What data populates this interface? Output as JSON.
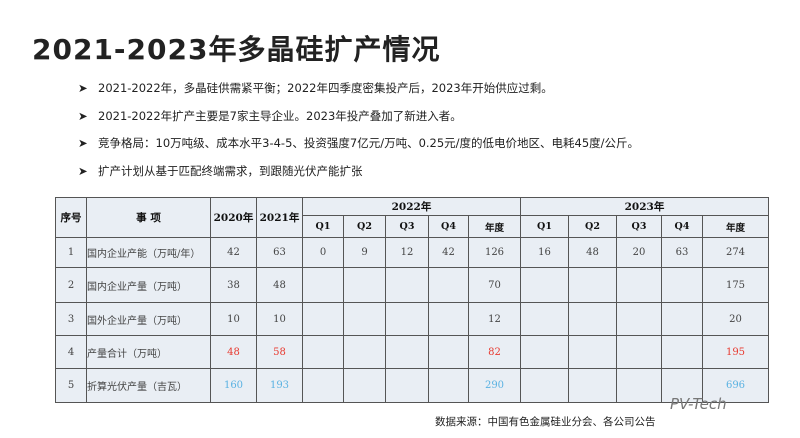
{
  "header": {
    "title": "2021-2023年多晶硅扩产情况"
  },
  "bullets": [
    "2021-2022年，多晶硅供需紧平衡；2022年四季度密集投产后，2023年开始供应过剩。",
    "2021-2022年扩产主要是7家主导企业。2023年投产叠加了新进入者。",
    "竞争格局：10万吨级、成本水平3-4-5、投资强度7亿元/万吨、0.25元/度的低电价地区、电耗45度/公斤。",
    "扩产计划从基于匹配终端需求，到跟随光伏产能扩张"
  ],
  "table": {
    "header_top": [
      "序号",
      "事 项",
      "2020年",
      "2021年",
      "2022年",
      "2023年"
    ],
    "header_sub": [
      "Q1",
      "Q2",
      "Q3",
      "Q4",
      "年度",
      "Q1",
      "Q2",
      "Q3",
      "Q4",
      "年度"
    ],
    "rows": [
      [
        1,
        "国内企业产能（万吨/年）",
        42,
        63,
        0,
        9,
        12,
        42,
        126,
        16,
        48,
        20,
        63,
        274
      ],
      [
        2,
        "国内企业产量（万吨）",
        38,
        48,
        null,
        null,
        null,
        null,
        70,
        null,
        null,
        null,
        null,
        175
      ],
      [
        3,
        "国外企业产量（万吨）",
        10,
        10,
        null,
        null,
        null,
        null,
        12,
        null,
        null,
        null,
        null,
        20
      ],
      [
        4,
        "产量合计（万吨）",
        48,
        58,
        null,
        null,
        null,
        null,
        82,
        null,
        null,
        null,
        null,
        195
      ],
      [
        5,
        "折算光伏产量（吉瓦）",
        160,
        193,
        null,
        null,
        null,
        null,
        290,
        null,
        null,
        null,
        null,
        696
      ]
    ],
    "row_colors": [
      "#444444",
      "#444444",
      "#444444",
      "#e83a30",
      "#5ab2e2"
    ]
  },
  "source": "数据来源：中国有色金属硅业分会、各公司公告",
  "watermark": "PV-Tech"
}
